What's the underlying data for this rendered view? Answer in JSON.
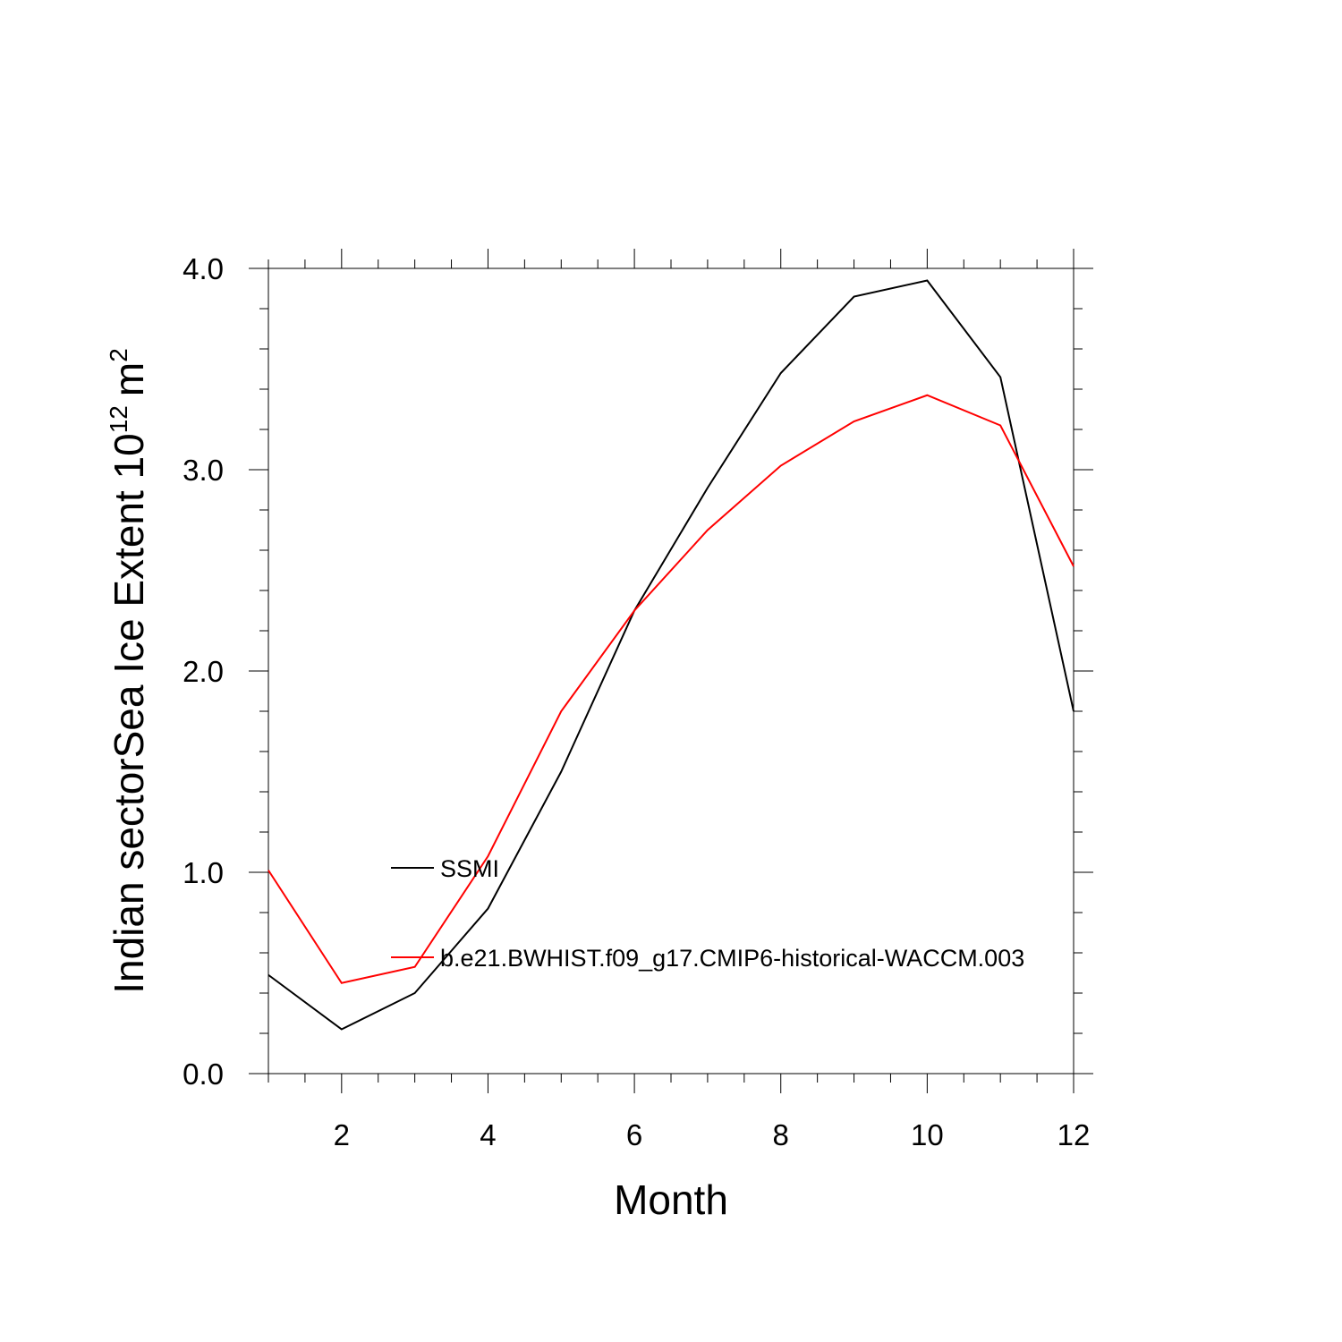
{
  "chart_data": {
    "type": "line",
    "title": "",
    "xlabel": "Month",
    "ylabel": {
      "prefix": "Indian sectorSea Ice Extent 10",
      "exponent": "12",
      "unit": "m",
      "unit_exponent": "2"
    },
    "xlim": [
      1,
      12
    ],
    "ylim": [
      0,
      4
    ],
    "x_ticks": [
      2,
      4,
      6,
      8,
      10,
      12
    ],
    "y_ticks": [
      "0.0",
      "1.0",
      "2.0",
      "3.0",
      "4.0"
    ],
    "x": [
      1,
      2,
      3,
      4,
      5,
      6,
      7,
      8,
      9,
      10,
      11,
      12
    ],
    "grid": false,
    "legend_position": "center-left",
    "series": [
      {
        "name": "SSMI",
        "color": "#000000",
        "values": [
          0.49,
          0.22,
          0.4,
          0.82,
          1.5,
          2.3,
          2.91,
          3.48,
          3.86,
          3.94,
          3.46,
          1.8
        ]
      },
      {
        "name": "b.e21.BWHIST.f09_g17.CMIP6-historical-WACCM.003",
        "color": "#ff0000",
        "values": [
          1.01,
          0.45,
          0.53,
          1.08,
          1.8,
          2.3,
          2.7,
          3.02,
          3.24,
          3.37,
          3.22,
          2.52
        ]
      }
    ]
  }
}
